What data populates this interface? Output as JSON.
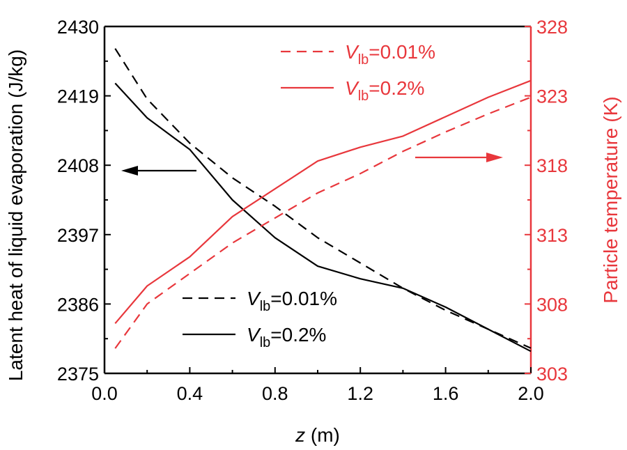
{
  "chart_data": {
    "type": "line",
    "x_axis": {
      "label_italic": "z",
      "label_rest": " (m)",
      "range": [
        0,
        2.0
      ],
      "ticks": [
        "0.0",
        "0.4",
        "0.8",
        "1.2",
        "1.6",
        "2.0"
      ],
      "tick_values": [
        0,
        0.4,
        0.8,
        1.2,
        1.6,
        2.0
      ]
    },
    "y_left": {
      "label": "Latent heat of liquid evaporation (J/kg)",
      "range": [
        2375,
        2430
      ],
      "ticks": [
        "2375",
        "2386",
        "2397",
        "2408",
        "2419",
        "2430"
      ],
      "tick_values": [
        2375,
        2386,
        2397,
        2408,
        2419,
        2430
      ],
      "color": "#000000"
    },
    "y_right": {
      "label": "Particle temperature (K)",
      "range": [
        303,
        328
      ],
      "ticks": [
        "303",
        "308",
        "313",
        "318",
        "323",
        "328"
      ],
      "tick_values": [
        303,
        308,
        313,
        318,
        323,
        328
      ],
      "color": "#e8373c"
    },
    "series": [
      {
        "name": "latent-heat-0.01",
        "axis": "left",
        "style": "dashed",
        "color": "#000000",
        "x": [
          0.05,
          0.2,
          0.4,
          0.6,
          0.8,
          1.0,
          1.2,
          1.4,
          1.6,
          1.8,
          2.0
        ],
        "y": [
          2426.5,
          2418.5,
          2411.5,
          2406.0,
          2401.5,
          2396.5,
          2392.5,
          2388.5,
          2385.0,
          2382.0,
          2379.0
        ]
      },
      {
        "name": "latent-heat-0.2",
        "axis": "left",
        "style": "solid",
        "color": "#000000",
        "x": [
          0.05,
          0.2,
          0.4,
          0.6,
          0.8,
          1.0,
          1.2,
          1.4,
          1.6,
          1.8,
          2.0
        ],
        "y": [
          2421.0,
          2415.5,
          2410.5,
          2402.5,
          2396.5,
          2392.0,
          2390.0,
          2388.5,
          2385.5,
          2382.0,
          2378.5
        ]
      },
      {
        "name": "temperature-0.01",
        "axis": "right",
        "style": "dashed",
        "color": "#e8373c",
        "x": [
          0.05,
          0.2,
          0.4,
          0.6,
          0.8,
          1.0,
          1.2,
          1.4,
          1.6,
          1.8,
          2.0
        ],
        "y": [
          304.8,
          308.0,
          310.2,
          312.4,
          314.2,
          316.0,
          317.4,
          319.0,
          320.4,
          321.7,
          322.9
        ]
      },
      {
        "name": "temperature-0.2",
        "axis": "right",
        "style": "solid",
        "color": "#e8373c",
        "x": [
          0.05,
          0.2,
          0.4,
          0.6,
          0.8,
          1.0,
          1.2,
          1.4,
          1.6,
          1.8,
          2.0
        ],
        "y": [
          306.6,
          309.3,
          311.4,
          314.3,
          316.3,
          318.3,
          319.3,
          320.1,
          321.5,
          322.9,
          324.1
        ]
      }
    ],
    "legend_left": [
      {
        "italic": "V",
        "sub": "lb",
        "text": "=0.01%",
        "style": "dashed",
        "color": "#000000"
      },
      {
        "italic": "V",
        "sub": "lb",
        "text": "=0.2%",
        "style": "solid",
        "color": "#000000"
      }
    ],
    "legend_right": [
      {
        "italic": "V",
        "sub": "lb",
        "text": "=0.01%",
        "style": "dashed",
        "color": "#e8373c"
      },
      {
        "italic": "V",
        "sub": "lb",
        "text": "=0.2%",
        "style": "solid",
        "color": "#e8373c"
      }
    ],
    "annotations": [
      {
        "name": "left-arrow",
        "points_to": "left-axis",
        "color": "#000000"
      },
      {
        "name": "right-arrow",
        "points_to": "right-axis",
        "color": "#e8373c"
      }
    ]
  }
}
